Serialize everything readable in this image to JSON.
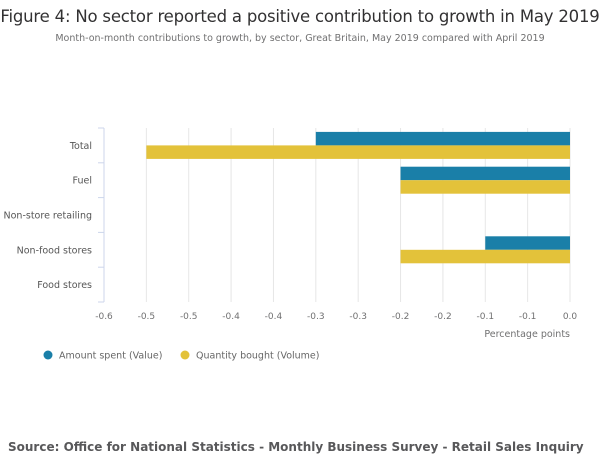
{
  "title": "Figure 4: No sector reported a positive contribution to growth in May 2019",
  "subtitle": "Month-on-month contributions to growth, by sector, Great Britain, May 2019 compared with April 2019",
  "source": "Source: Office for National Statistics - Monthly Business Survey - Retail Sales Inquiry",
  "chart_data": {
    "type": "bar",
    "orientation": "horizontal",
    "title": "Figure 4: No sector reported a positive contribution to growth in May 2019",
    "subtitle": "Month-on-month contributions to growth, by sector, Great Britain, May 2019 compared with April 2019",
    "categories": [
      "Total",
      "Fuel",
      "Non-store retailing",
      "Non-food stores",
      "Food stores"
    ],
    "series": [
      {
        "name": "Amount spent (Value)",
        "color": "#1a7fa8",
        "values": [
          -0.3,
          -0.2,
          0.0,
          -0.1,
          0.0
        ]
      },
      {
        "name": "Quantity bought (Volume)",
        "color": "#e3c23a",
        "values": [
          -0.5,
          -0.2,
          0.0,
          -0.2,
          0.0
        ]
      }
    ],
    "xlabel": "Percentage points",
    "ylabel": "",
    "xlim": [
      -0.55,
      0.0
    ],
    "xticks": [
      -0.55,
      -0.5,
      -0.45,
      -0.4,
      -0.35,
      -0.3,
      -0.25,
      -0.2,
      -0.15,
      -0.1,
      -0.05,
      0.0
    ],
    "xtick_labels": [
      "-0.6",
      "-0.5",
      "-0.5",
      "-0.4",
      "-0.4",
      "-0.3",
      "-0.3",
      "-0.2",
      "-0.2",
      "-0.1",
      "-0.1",
      "0.0"
    ],
    "grid": true,
    "legend": "bottom-left"
  }
}
